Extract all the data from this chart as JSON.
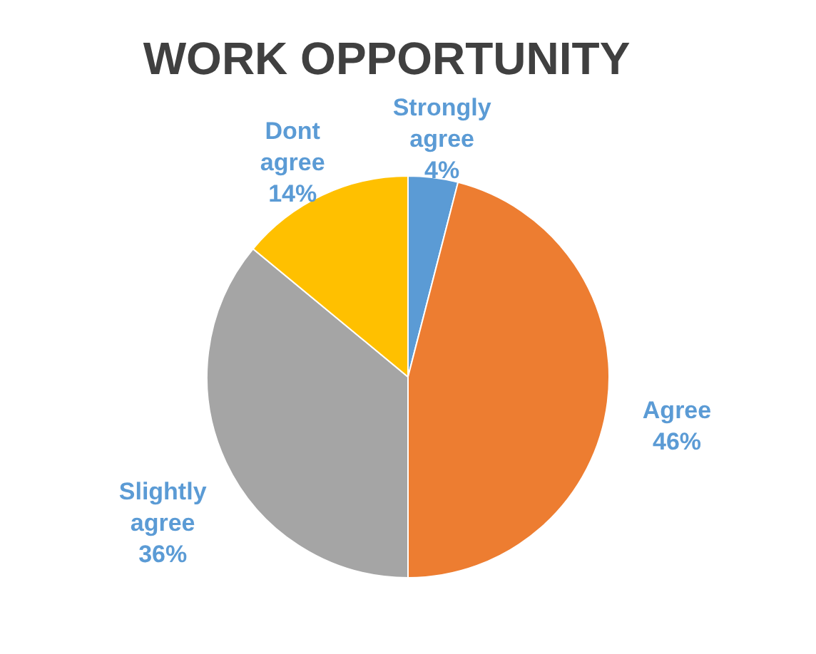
{
  "chart_data": {
    "type": "pie",
    "title": "WORK OPPORTUNITY",
    "categories": [
      "Strongly agree",
      "Agree",
      "Slightly agree",
      "Dont agree"
    ],
    "values": [
      4,
      46,
      36,
      14
    ],
    "colors": [
      "#5b9bd5",
      "#ed7d31",
      "#a5a5a5",
      "#ffc000"
    ],
    "value_labels": [
      "4%",
      "46%",
      "36%",
      "14%"
    ],
    "legend": false
  }
}
